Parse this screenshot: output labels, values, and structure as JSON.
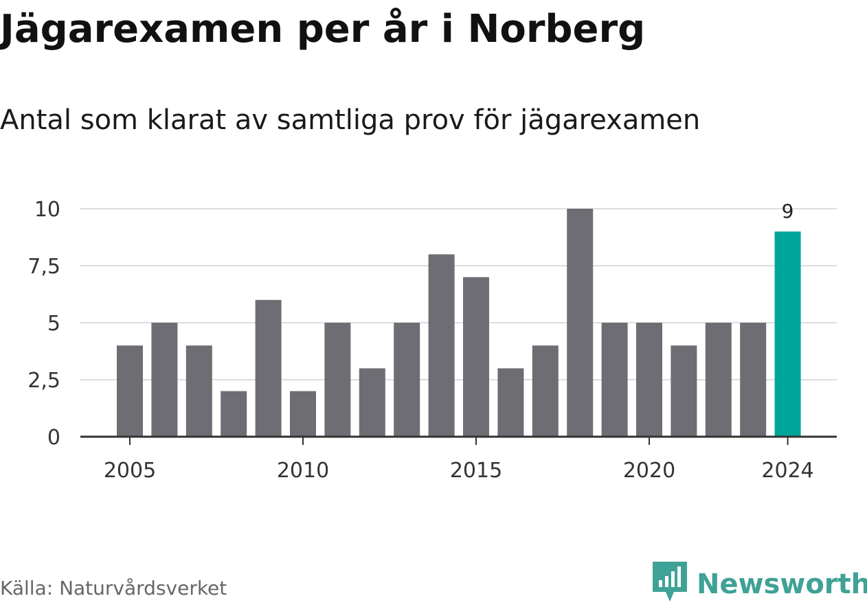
{
  "header": {
    "title": "Jägarexamen per år i Norberg",
    "subtitle": "Antal som klarat av samtliga prov för jägarexamen"
  },
  "footer": {
    "source": "Källa: Naturvårdsverket",
    "brand": "Newsworthy",
    "brand_icon": "bar-chart-logo-icon"
  },
  "colors": {
    "bar": "#6e6d73",
    "highlight": "#00a59a",
    "grid": "#dddddd",
    "axis": "#333333",
    "brand": "#3fa296"
  },
  "chart_data": {
    "type": "bar",
    "x": [
      2005,
      2006,
      2007,
      2008,
      2009,
      2010,
      2011,
      2012,
      2013,
      2014,
      2015,
      2016,
      2017,
      2018,
      2019,
      2020,
      2021,
      2022,
      2023,
      2024
    ],
    "values": [
      4,
      5,
      4,
      2,
      6,
      2,
      5,
      3,
      5,
      8,
      7,
      3,
      4,
      10,
      5,
      5,
      4,
      5,
      5,
      9
    ],
    "title": "Jägarexamen per år i Norberg",
    "subtitle": "Antal som klarat av samtliga prov för jägarexamen",
    "xlabel": "",
    "ylabel": "",
    "ylim": [
      0,
      10
    ],
    "y_ticks": [
      0,
      2.5,
      5,
      7.5,
      10
    ],
    "y_tick_labels": [
      "0",
      "2,5",
      "5",
      "7,5",
      "10"
    ],
    "x_tick_labels": [
      "2005",
      "2010",
      "2015",
      "2020",
      "2024"
    ],
    "highlight": {
      "x": 2024,
      "label": "9"
    },
    "grid": true
  }
}
